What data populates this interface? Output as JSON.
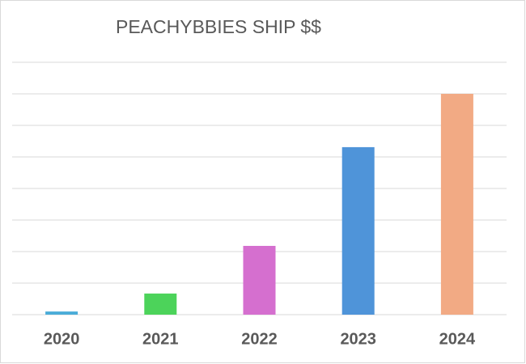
{
  "chart_data": {
    "type": "bar",
    "title": "PEACHYBBIES SHIP $$",
    "categories": [
      "2020",
      "2021",
      "2022",
      "2023",
      "2024"
    ],
    "values": [
      0.1,
      0.67,
      2.18,
      5.31,
      7.0
    ],
    "colors": [
      "#4bacd8",
      "#4cd35a",
      "#d56fcf",
      "#4f94d9",
      "#f2aa84"
    ],
    "ylim": [
      0,
      8
    ],
    "yticks": [
      0,
      1,
      2,
      3,
      4,
      5,
      6,
      7,
      8
    ],
    "grid": true
  }
}
